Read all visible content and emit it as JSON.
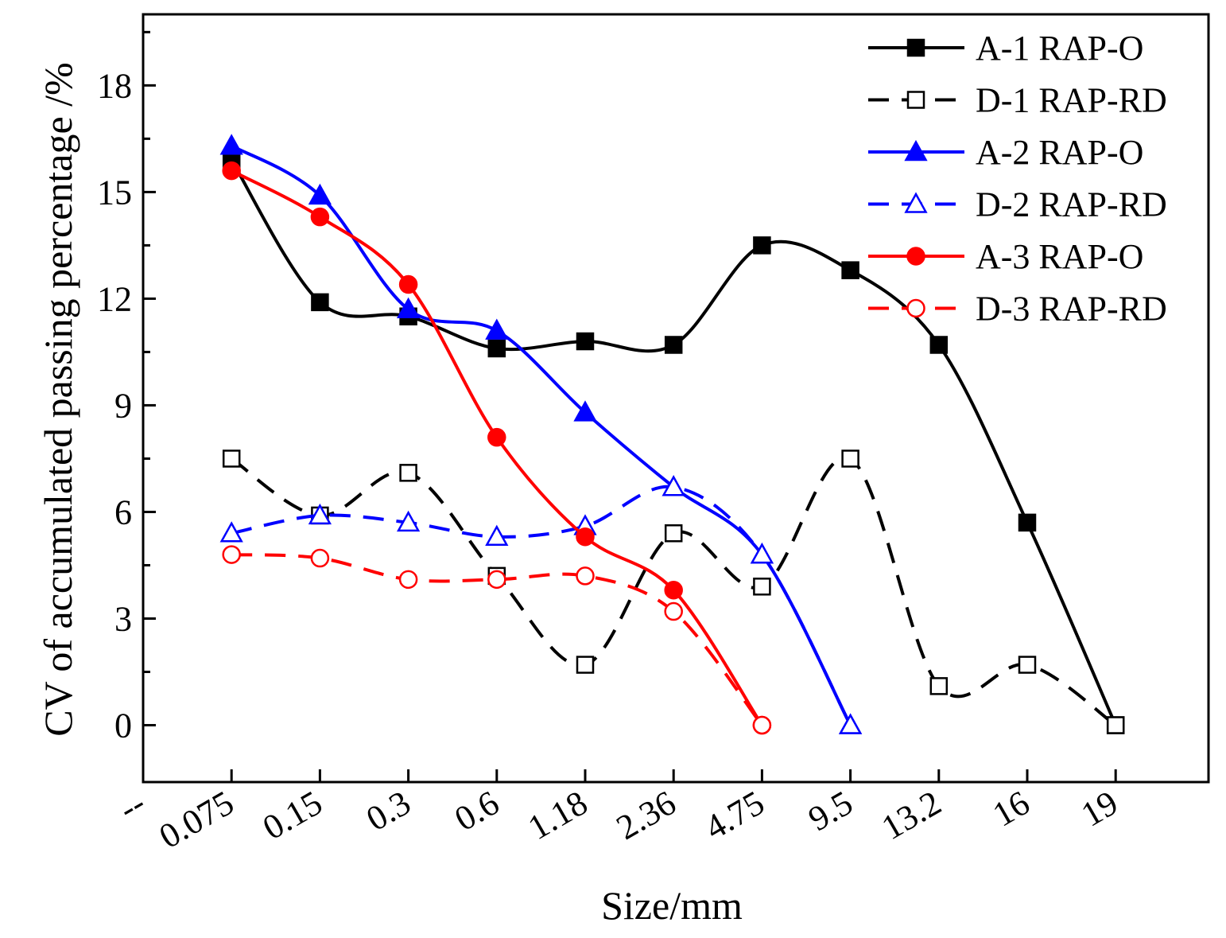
{
  "chart_data": {
    "type": "line",
    "xlabel": "Size/mm",
    "ylabel": "CV of accumulated passing percentage /%",
    "categories": [
      "--",
      "0.075",
      "0.15",
      "0.3",
      "0.6",
      "1.18",
      "2.36",
      "4.75",
      "9.5",
      "13.2",
      "16",
      "19"
    ],
    "ylim": [
      -1.6,
      20
    ],
    "yticks": [
      0,
      3,
      6,
      9,
      12,
      15,
      18
    ],
    "grid": false,
    "legend_position": "top-right",
    "series": [
      {
        "name": "A-1 RAP-O",
        "color": "#000000",
        "dash": false,
        "marker": "square",
        "filled": true,
        "values": [
          null,
          15.9,
          11.9,
          11.5,
          10.6,
          10.8,
          10.7,
          13.5,
          12.8,
          10.7,
          5.7,
          0
        ]
      },
      {
        "name": "D-1 RAP-RD",
        "color": "#000000",
        "dash": true,
        "marker": "square",
        "filled": false,
        "values": [
          null,
          7.5,
          5.9,
          7.1,
          4.2,
          1.7,
          5.4,
          3.9,
          7.5,
          1.1,
          1.7,
          0
        ]
      },
      {
        "name": "A-2 RAP-O",
        "color": "#0000ff",
        "dash": false,
        "marker": "triangle",
        "filled": true,
        "values": [
          null,
          16.3,
          14.9,
          11.7,
          11.1,
          8.8,
          6.7,
          4.8,
          0,
          null,
          null,
          null
        ]
      },
      {
        "name": "D-2 RAP-RD",
        "color": "#0000ff",
        "dash": true,
        "marker": "triangle",
        "filled": false,
        "values": [
          null,
          5.4,
          5.9,
          5.7,
          5.3,
          5.6,
          6.7,
          4.8,
          0,
          null,
          null,
          null
        ]
      },
      {
        "name": "A-3 RAP-O",
        "color": "#ff0000",
        "dash": false,
        "marker": "circle",
        "filled": true,
        "values": [
          null,
          15.6,
          14.3,
          12.4,
          8.1,
          5.3,
          3.8,
          0,
          null,
          null,
          null,
          null
        ]
      },
      {
        "name": "D-3 RAP-RD",
        "color": "#ff0000",
        "dash": true,
        "marker": "circle",
        "filled": false,
        "values": [
          null,
          4.8,
          4.7,
          4.1,
          4.1,
          4.2,
          3.2,
          0,
          null,
          null,
          null,
          null
        ]
      }
    ]
  }
}
